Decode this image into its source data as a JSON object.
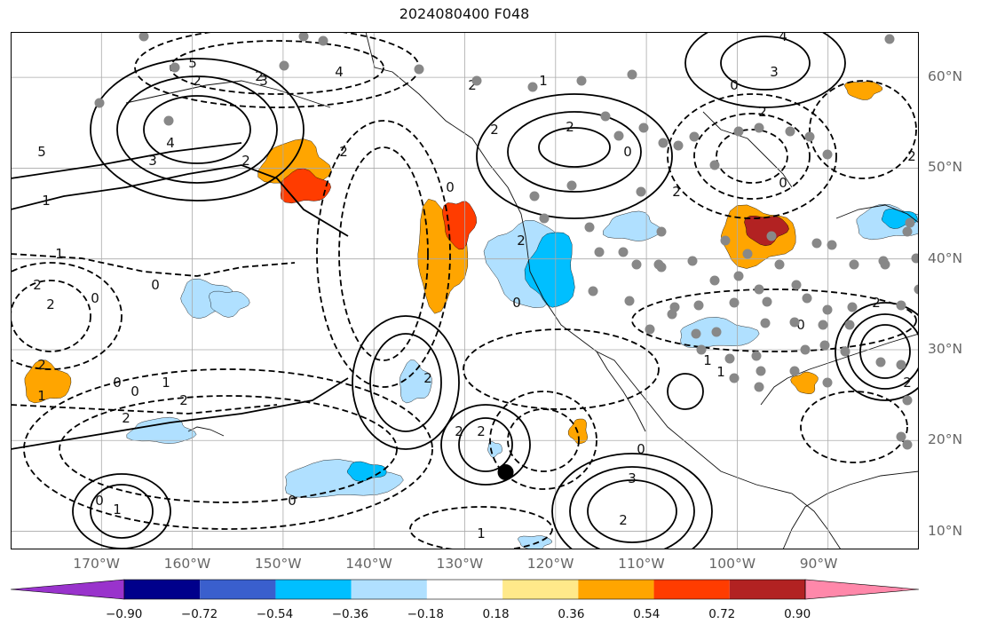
{
  "title": "2024080400 F048",
  "map": {
    "lon_range": [
      -180,
      -80
    ],
    "lat_range": [
      8,
      65
    ],
    "lon_ticks": [
      {
        "value": -170,
        "label": "170°W"
      },
      {
        "value": -160,
        "label": "160°W"
      },
      {
        "value": -150,
        "label": "150°W"
      },
      {
        "value": -140,
        "label": "140°W"
      },
      {
        "value": -130,
        "label": "130°W"
      },
      {
        "value": -120,
        "label": "120°W"
      },
      {
        "value": -110,
        "label": "110°W"
      },
      {
        "value": -100,
        "label": "100°W"
      },
      {
        "value": -90,
        "label": "90°W"
      }
    ],
    "lat_ticks": [
      {
        "value": 60,
        "label": "60°N"
      },
      {
        "value": 50,
        "label": "50°N"
      },
      {
        "value": 40,
        "label": "40°N"
      },
      {
        "value": 30,
        "label": "30°N"
      },
      {
        "value": 20,
        "label": "20°N"
      },
      {
        "value": 10,
        "label": "10°N"
      }
    ],
    "grid": true,
    "storm_marker": {
      "lon": -125.5,
      "lat": 16.5
    },
    "colors": {
      "contour": "#000000",
      "grid": "#aaaaaa",
      "station": "#888888",
      "label": "#666666"
    }
  },
  "colorbar": {
    "tick_labels": [
      "−0.90",
      "−0.72",
      "−0.54",
      "−0.36",
      "−0.18",
      "0.18",
      "0.36",
      "0.54",
      "0.72",
      "0.90"
    ],
    "colors": [
      "#9933cc",
      "#00008b",
      "#3a5fcd",
      "#00bfff",
      "#b0e0ff",
      "#ffffff",
      "#ffe98a",
      "#ffa500",
      "#ff3c00",
      "#b22222",
      "#ff88aa"
    ]
  }
}
